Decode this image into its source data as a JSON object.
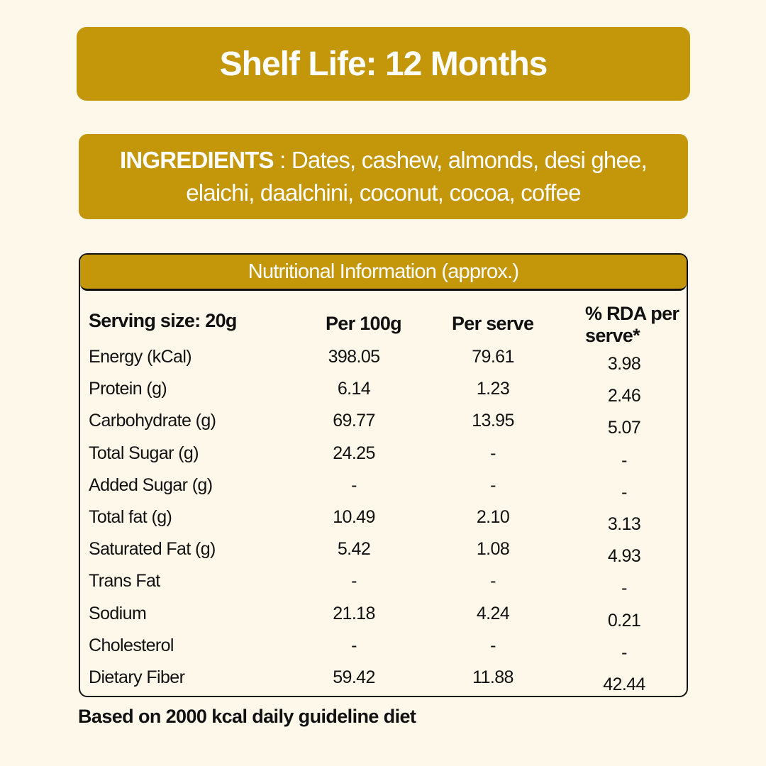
{
  "shelf_life": "Shelf Life: 12 Months",
  "ingredients": {
    "label": "INGREDIENTS",
    "text": " : Dates, cashew, almonds, desi ghee, elaichi, daalchini, coconut, cocoa, coffee"
  },
  "nutrition": {
    "title": "Nutritional Information (approx.)",
    "headers": [
      "Serving size: 20g",
      "Per 100g",
      "Per serve",
      "% RDA per serve*"
    ],
    "rows": [
      [
        "Energy (kCal)",
        "398.05",
        "79.61",
        "3.98"
      ],
      [
        "Protein (g)",
        "6.14",
        "1.23",
        "2.46"
      ],
      [
        "Carbohydrate (g)",
        "69.77",
        "13.95",
        "5.07"
      ],
      [
        "Total Sugar (g)",
        "24.25",
        "-",
        "-"
      ],
      [
        "Added Sugar (g)",
        "-",
        "-",
        "-"
      ],
      [
        "Total fat (g)",
        "10.49",
        "2.10",
        "3.13"
      ],
      [
        "Saturated Fat (g)",
        "5.42",
        "1.08",
        "4.93"
      ],
      [
        "Trans Fat",
        "-",
        "-",
        "-"
      ],
      [
        "Sodium",
        "21.18",
        "4.24",
        "0.21"
      ],
      [
        "Cholesterol",
        "-",
        "-",
        "-"
      ],
      [
        "Dietary Fiber",
        "59.42",
        "11.88",
        "42.44"
      ]
    ]
  },
  "footer": "Based on 2000 kcal daily guideline diet",
  "colors": {
    "accent": "#c4960a",
    "background": "#fdf8ea"
  }
}
